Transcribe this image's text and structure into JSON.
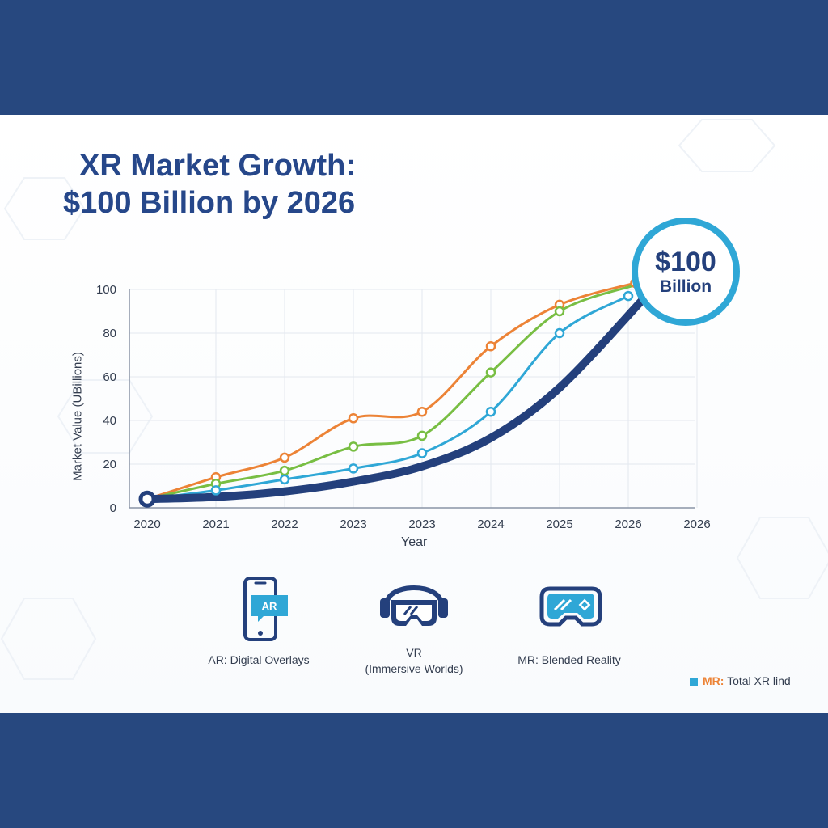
{
  "colors": {
    "band": "#27487f",
    "title": "#26478a",
    "total": "#24407c",
    "ar": "#2fa7d6",
    "mr": "#78be43",
    "vr": "#ec8336"
  },
  "header": {
    "title_line1": "XR Market Growth:",
    "title_line2": "$100 Billion by 2026"
  },
  "badge": {
    "value": "$100",
    "unit": "Billion"
  },
  "categories": [
    {
      "label": "AR: Digital Overlays",
      "icon": "smartphone-ar-icon",
      "icon_text": "AR"
    },
    {
      "label_line1": "VR",
      "label_line2": "(Immersive Worlds)",
      "icon": "vr-headset-icon"
    },
    {
      "label": "MR: Blended Reality",
      "icon": "mr-goggles-icon"
    }
  ],
  "legend": {
    "prefix": "MR:",
    "text": "Total XR lind"
  },
  "chart_data": {
    "type": "line",
    "title": "XR Market Growth: $100 Billion by 2026",
    "xlabel": "Year",
    "ylabel": "Market Value (UBillions)",
    "ylim": [
      0,
      100
    ],
    "yticks": [
      0,
      20,
      40,
      60,
      80,
      100
    ],
    "categories": [
      "2020",
      "2021",
      "2022",
      "2023",
      "2023",
      "2024",
      "2025",
      "2026",
      "2026"
    ],
    "grid": true,
    "series": [
      {
        "name": "Orange",
        "color": "#ec8336",
        "x": [
          0,
          1,
          2,
          3,
          4,
          5,
          6,
          7.1
        ],
        "values": [
          4,
          14,
          23,
          41,
          44,
          74,
          93,
          103
        ],
        "markers": [
          1,
          2,
          3,
          4,
          5,
          6,
          7
        ]
      },
      {
        "name": "Green",
        "color": "#78be43",
        "x": [
          0,
          1,
          2,
          3,
          4,
          5,
          6,
          7.1
        ],
        "values": [
          4,
          11,
          17,
          28,
          33,
          62,
          90,
          102
        ],
        "markers": [
          1,
          2,
          3,
          4,
          5,
          6
        ]
      },
      {
        "name": "Blue",
        "color": "#2fa7d6",
        "x": [
          0,
          1,
          2,
          3,
          4,
          5,
          6,
          7
        ],
        "values": [
          4,
          8,
          13,
          18,
          25,
          44,
          80,
          97
        ],
        "markers": [
          1,
          2,
          3,
          4,
          5,
          6,
          7
        ]
      },
      {
        "name": "Total XR",
        "color": "#24407c",
        "x": [
          0,
          1,
          2,
          3,
          4,
          5,
          6,
          7.2
        ],
        "values": [
          4,
          5,
          7.5,
          12,
          19,
          32,
          55,
          95
        ],
        "markers": [
          0
        ]
      }
    ]
  }
}
